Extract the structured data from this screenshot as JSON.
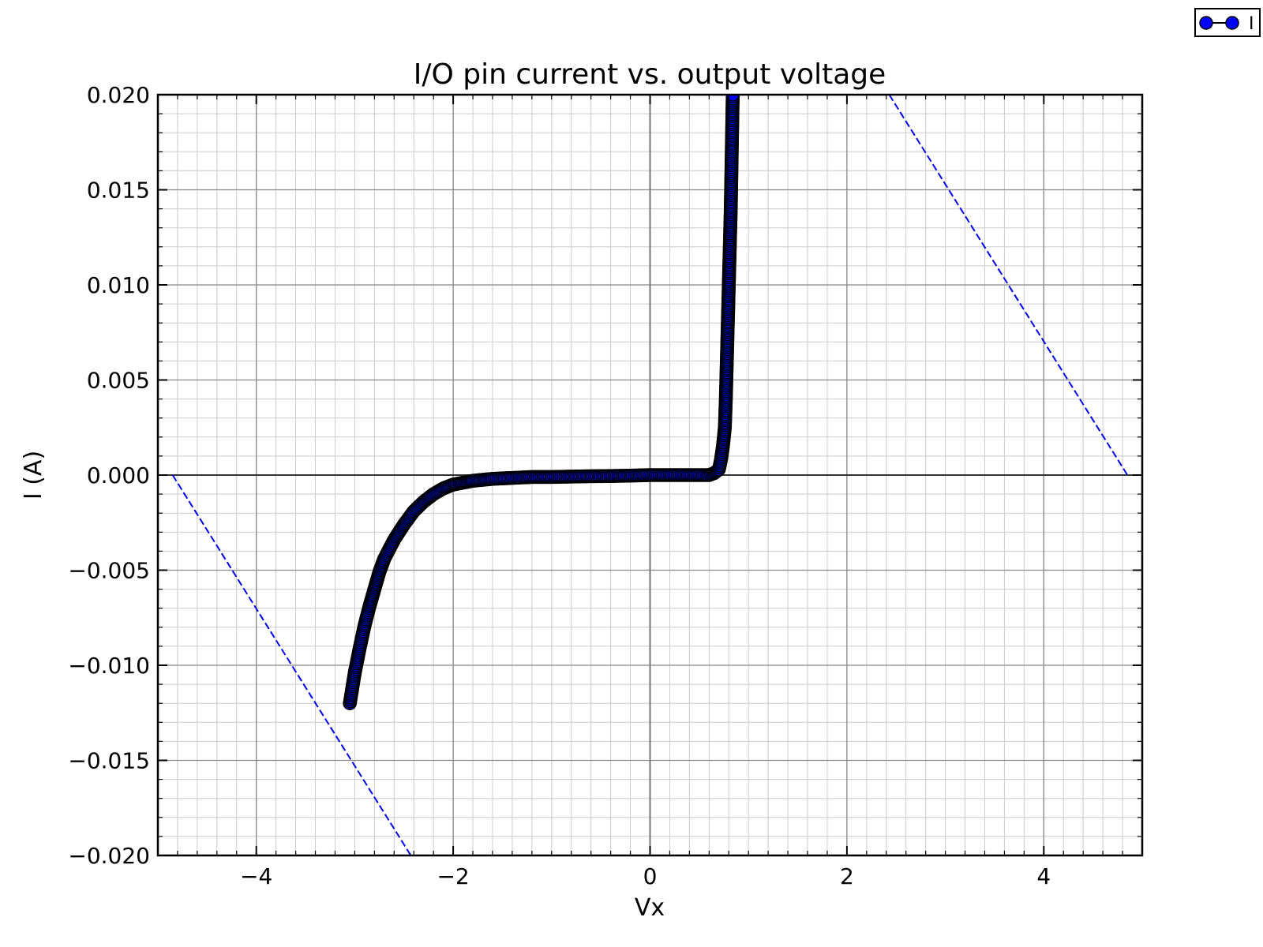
{
  "chart_data": {
    "type": "scatter",
    "title": "I/O pin current vs. output voltage",
    "xlabel": "Vx",
    "ylabel": "I (A)",
    "xlim": [
      -5,
      5
    ],
    "ylim": [
      -0.02,
      0.02
    ],
    "xticks": [
      -4,
      -2,
      0,
      2,
      4
    ],
    "xtick_labels": [
      "−4",
      "−2",
      "0",
      "2",
      "4"
    ],
    "yticks": [
      -0.02,
      -0.015,
      -0.01,
      -0.005,
      0,
      0.005,
      0.01,
      0.015,
      0.02
    ],
    "ytick_labels": [
      "−0.020",
      "−0.015",
      "−0.010",
      "−0.005",
      "0.000",
      "0.005",
      "0.010",
      "0.015",
      "0.020"
    ],
    "grid": true,
    "legend": {
      "position": "top-right",
      "entries": [
        "I"
      ]
    },
    "colors": {
      "series": "#0000ff",
      "edge": "#000000",
      "load_line": "#0000ee",
      "grid_major": "#888888",
      "grid_minor": "#cccccc"
    },
    "series": [
      {
        "name": "I",
        "marker": "circle",
        "x": [
          -3.05,
          -3.0,
          -2.95,
          -2.9,
          -2.85,
          -2.8,
          -2.75,
          -2.7,
          -2.6,
          -2.5,
          -2.4,
          -2.3,
          -2.2,
          -2.1,
          -2.0,
          -1.9,
          -1.8,
          -1.6,
          -1.4,
          -1.2,
          -1.0,
          -0.8,
          -0.6,
          -0.4,
          -0.2,
          0.0,
          0.2,
          0.4,
          0.6,
          0.65,
          0.7,
          0.72,
          0.74,
          0.76,
          0.77,
          0.78,
          0.79,
          0.8,
          0.81,
          0.82,
          0.83,
          0.84
        ],
        "y": [
          -0.012,
          -0.0104,
          -0.0091,
          -0.0079,
          -0.0069,
          -0.006,
          -0.0051,
          -0.0044,
          -0.0034,
          -0.0026,
          -0.0019,
          -0.0014,
          -0.001,
          -0.0007,
          -0.0005,
          -0.0004,
          -0.0003,
          -0.0002,
          -0.00015,
          -0.0001,
          -0.0001,
          -8e-05,
          -6e-05,
          -5e-05,
          -3e-05,
          0.0,
          0.0,
          0.0,
          0.0,
          0.0001,
          0.0003,
          0.0008,
          0.0015,
          0.0025,
          0.004,
          0.006,
          0.008,
          0.01,
          0.012,
          0.014,
          0.017,
          0.02
        ]
      },
      {
        "name": "",
        "style": "dashed",
        "x": [
          -4.85,
          -2.43
        ],
        "y": [
          0.0,
          -0.02
        ]
      },
      {
        "name": "",
        "style": "dashed",
        "x": [
          2.43,
          4.85
        ],
        "y": [
          0.02,
          0.0
        ]
      }
    ]
  }
}
